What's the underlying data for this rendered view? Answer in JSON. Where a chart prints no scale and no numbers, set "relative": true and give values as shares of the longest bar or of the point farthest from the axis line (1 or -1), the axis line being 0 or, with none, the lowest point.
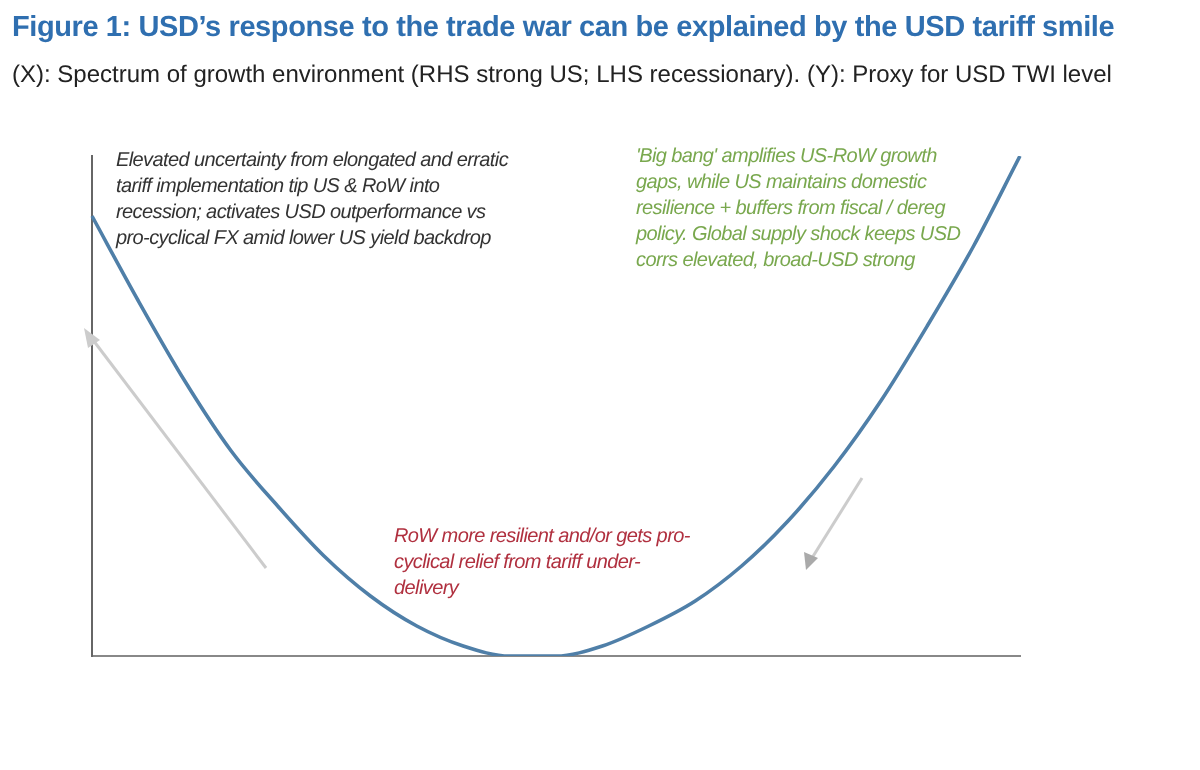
{
  "chart_data": {
    "type": "line",
    "relative": true,
    "title": "Figure 1: USD’s response to the trade war can be explained by the USD tariff smile",
    "subtitle": "(X): Spectrum of growth environment (RHS strong US; LHS recessionary). (Y): Proxy for USD TWI level",
    "categories": [
      null,
      null,
      null,
      null,
      null,
      null,
      null,
      null,
      null,
      null,
      null,
      null,
      null,
      null,
      null,
      null,
      null,
      null,
      null,
      null,
      null
    ],
    "series": [
      {
        "color": "#4f7fa8",
        "values": [
          0.88,
          0.71,
          0.55,
          0.41,
          0.3,
          0.2,
          0.12,
          0.06,
          0.02,
          0,
          0,
          0.02,
          0.06,
          0.11,
          0.18,
          0.27,
          0.38,
          0.51,
          0.66,
          0.82,
          1
        ]
      }
    ],
    "annotations": [
      "Elevated uncertainty from elongated and erratic tariff implementation tip US & RoW into recession; activates USD outperformance vs pro-cyclical FX amid lower US yield backdrop",
      "'Big bang' amplifies US-RoW growth gaps, while US maintains domestic resilience + buffers from fiscal / dereg policy. Global supply shock keeps USD corrs elevated, broad-USD strong",
      "RoW more resilient and/or gets pro-cyclical relief from tariff under-delivery"
    ],
    "grid": false,
    "legend": false,
    "marker": "none",
    "line_style": "solid",
    "tick_labels": false
  }
}
